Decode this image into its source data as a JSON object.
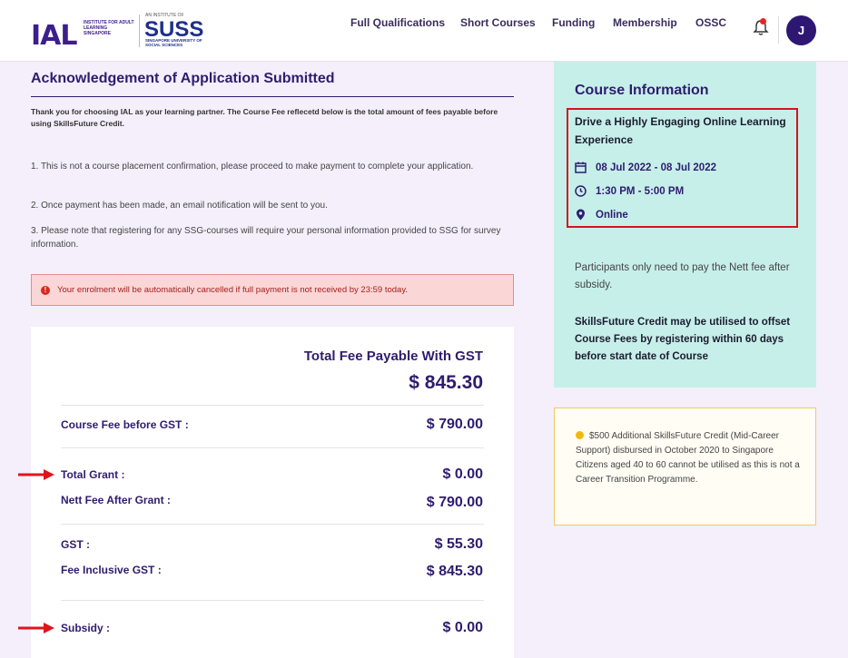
{
  "header": {
    "logo_ial": "IAL",
    "logo_ial_sub": "INSTITUTE FOR ADULT LEARNING SINGAPORE",
    "logo_suss_top": "AN INSTITUTE OF",
    "logo_suss": "SUSS",
    "logo_suss_sub": "SINGAPORE UNIVERSITY OF SOCIAL SCIENCES",
    "nav": [
      "Full Qualifications",
      "Short Courses",
      "Funding",
      "Membership",
      "OSSC"
    ],
    "avatar_initial": "J"
  },
  "main": {
    "title": "Acknowledgement of Application Submitted",
    "intro": "Thank you for choosing IAL as your learning partner. The Course Fee reflecetd below is the total amount of fees payable before using SkillsFuture Credit.",
    "points": [
      "1.   This is not a course placement confirmation, please proceed to make payment to complete your application.",
      "2.   Once payment has been made, an email notification will be sent to you.",
      "3.   Please note that registering for any SSG-courses will require your personal information provided to SSG for survey information."
    ],
    "alert": "Your enrolment will be automatically cancelled if full payment is not received by 23:59 today.",
    "fees": {
      "heading": "Total Fee Payable With GST",
      "total": "$ 845.30",
      "course_fee_label": "Course Fee before GST :",
      "course_fee_value": "$ 790.00",
      "total_grant_label": "Total Grant :",
      "total_grant_value": "$ 0.00",
      "nett_fee_label": "Nett Fee After Grant :",
      "nett_fee_value": "$ 790.00",
      "gst_label": "GST :",
      "gst_value": "$ 55.30",
      "fee_incl_label": "Fee Inclusive GST :",
      "fee_incl_value": "$ 845.30",
      "subsidy_label": "Subsidy :",
      "subsidy_value": "$ 0.00"
    }
  },
  "sidebar": {
    "info_title": "Course Information",
    "course_name": "Drive a Highly Engaging Online Learning Experience",
    "date": "08 Jul 2022 - 08 Jul 2022",
    "time": "1:30 PM - 5:00 PM",
    "location": "Online",
    "note": "Participants only need to pay the Nett fee after subsidy.",
    "credit_note": "SkillsFuture Credit may be utilised to offset Course Fees by registering within 60 days before start date of Course",
    "notice": "$500 Additional SkillsFuture Credit (Mid-Career Support) disbursed in October 2020 to Singapore Citizens aged 40 to 60 cannot be utilised as this is not a Career Transition Programme."
  },
  "colors": {
    "brand": "#2e1d6e",
    "highlight": "#d4141c",
    "info_bg": "#c6efea"
  }
}
